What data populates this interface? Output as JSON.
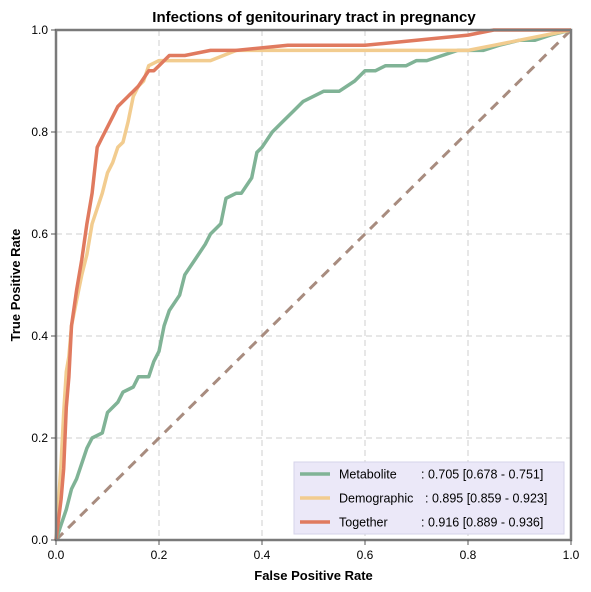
{
  "chart_data": {
    "type": "line",
    "title": "Infections of genitourinary tract in pregnancy",
    "xlabel": "False Positive Rate",
    "ylabel": "True Positive Rate",
    "xlim": [
      0,
      1
    ],
    "ylim": [
      0,
      1
    ],
    "x_ticks": [
      "0.0",
      "0.2",
      "0.4",
      "0.6",
      "0.8",
      "1.0"
    ],
    "y_ticks": [
      "0.0",
      "0.2",
      "0.4",
      "0.6",
      "0.8",
      "1.0"
    ],
    "grid": true,
    "legend_position": "bottom-right",
    "diagonal": {
      "x": [
        0,
        1
      ],
      "y": [
        0,
        1
      ],
      "color": "#a88c7f",
      "style": "dashed"
    },
    "series": [
      {
        "name": "Metabolite",
        "legend_label": "Metabolite",
        "legend_value": ": 0.705 [0.678 - 0.751]",
        "color": "#80b396",
        "x": [
          0,
          0.01,
          0.02,
          0.03,
          0.04,
          0.06,
          0.07,
          0.09,
          0.1,
          0.12,
          0.13,
          0.15,
          0.16,
          0.18,
          0.19,
          0.2,
          0.21,
          0.22,
          0.24,
          0.25,
          0.27,
          0.29,
          0.3,
          0.32,
          0.33,
          0.35,
          0.36,
          0.38,
          0.39,
          0.4,
          0.42,
          0.44,
          0.46,
          0.48,
          0.5,
          0.52,
          0.55,
          0.58,
          0.6,
          0.62,
          0.64,
          0.66,
          0.68,
          0.7,
          0.72,
          0.75,
          0.78,
          0.8,
          0.83,
          0.86,
          0.9,
          0.93,
          0.96,
          1
        ],
        "y": [
          0,
          0.03,
          0.06,
          0.1,
          0.12,
          0.18,
          0.2,
          0.21,
          0.25,
          0.27,
          0.29,
          0.3,
          0.32,
          0.32,
          0.35,
          0.37,
          0.42,
          0.45,
          0.48,
          0.52,
          0.55,
          0.58,
          0.6,
          0.62,
          0.67,
          0.68,
          0.68,
          0.71,
          0.76,
          0.77,
          0.8,
          0.82,
          0.84,
          0.86,
          0.87,
          0.88,
          0.88,
          0.9,
          0.92,
          0.92,
          0.93,
          0.93,
          0.93,
          0.94,
          0.94,
          0.95,
          0.96,
          0.96,
          0.96,
          0.97,
          0.98,
          0.98,
          0.99,
          1
        ]
      },
      {
        "name": "Demographic",
        "legend_label": "Demographic",
        "legend_value": ": 0.895 [0.859 - 0.923]",
        "color": "#f2cc8f",
        "x": [
          0,
          0.01,
          0.015,
          0.02,
          0.025,
          0.03,
          0.04,
          0.05,
          0.06,
          0.07,
          0.08,
          0.09,
          0.1,
          0.11,
          0.12,
          0.13,
          0.14,
          0.15,
          0.16,
          0.17,
          0.18,
          0.2,
          0.22,
          0.25,
          0.3,
          0.35,
          0.5,
          0.6,
          0.7,
          0.8,
          0.85,
          0.9,
          0.95,
          1
        ],
        "y": [
          0,
          0.15,
          0.25,
          0.33,
          0.36,
          0.42,
          0.47,
          0.52,
          0.56,
          0.62,
          0.65,
          0.68,
          0.72,
          0.74,
          0.77,
          0.78,
          0.82,
          0.87,
          0.89,
          0.9,
          0.93,
          0.94,
          0.94,
          0.94,
          0.94,
          0.96,
          0.96,
          0.96,
          0.96,
          0.96,
          0.97,
          0.98,
          0.99,
          1
        ]
      },
      {
        "name": "Together",
        "legend_label": "Together",
        "legend_value": ": 0.916 [0.889 - 0.936]",
        "color": "#e07a5f",
        "x": [
          0,
          0.01,
          0.015,
          0.02,
          0.025,
          0.03,
          0.04,
          0.05,
          0.06,
          0.07,
          0.08,
          0.09,
          0.1,
          0.11,
          0.12,
          0.13,
          0.14,
          0.15,
          0.16,
          0.18,
          0.19,
          0.2,
          0.22,
          0.25,
          0.3,
          0.35,
          0.45,
          0.6,
          0.7,
          0.8,
          0.85,
          0.9,
          1
        ],
        "y": [
          0,
          0.08,
          0.14,
          0.26,
          0.32,
          0.42,
          0.49,
          0.55,
          0.62,
          0.68,
          0.77,
          0.79,
          0.81,
          0.83,
          0.85,
          0.86,
          0.87,
          0.88,
          0.89,
          0.92,
          0.92,
          0.93,
          0.95,
          0.95,
          0.96,
          0.96,
          0.97,
          0.97,
          0.98,
          0.99,
          1,
          1,
          1
        ]
      }
    ]
  }
}
